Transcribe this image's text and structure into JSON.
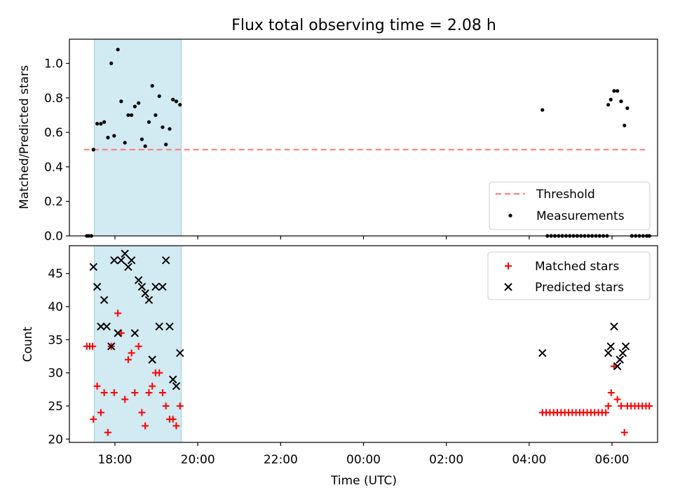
{
  "figure": {
    "title": "Flux total observing time = 2.08 h",
    "xlabel": "Time (UTC)"
  },
  "colors": {
    "shade": "#add8e6",
    "threshold": "#ff7777",
    "matched": "#ff0000",
    "predicted": "#000000",
    "measurement": "#000000"
  },
  "chart_data": [
    {
      "type": "scatter",
      "panel": "top",
      "ylabel": "Matched/Predicted stars",
      "x_axis": {
        "unit": "hours since 17:00 UTC (display as clock time)",
        "xlim": [
          16.9,
          31.1
        ],
        "ticks": [
          {
            "x": 18,
            "label": "18:00"
          },
          {
            "x": 20,
            "label": "20:00"
          },
          {
            "x": 22,
            "label": "22:00"
          },
          {
            "x": 24,
            "label": "00:00"
          },
          {
            "x": 26,
            "label": "02:00"
          },
          {
            "x": 28,
            "label": "04:00"
          },
          {
            "x": 30,
            "label": "06:00"
          }
        ]
      },
      "ylim": [
        0,
        1.14
      ],
      "yticks": [
        "0.0",
        "0.2",
        "0.4",
        "0.6",
        "0.8",
        "1.0"
      ],
      "shaded_region": [
        17.5,
        19.6
      ],
      "threshold": {
        "name": "Threshold",
        "value": 0.5,
        "x_range": [
          17.25,
          30.8
        ]
      },
      "series": [
        {
          "name": "Measurements",
          "marker": "dot",
          "points": [
            [
              17.32,
              0.0
            ],
            [
              17.37,
              0.0
            ],
            [
              17.43,
              0.0
            ],
            [
              17.48,
              0.5
            ],
            [
              17.57,
              0.65
            ],
            [
              17.66,
              0.65
            ],
            [
              17.74,
              0.66
            ],
            [
              17.83,
              0.57
            ],
            [
              17.91,
              1.0
            ],
            [
              17.98,
              0.58
            ],
            [
              18.07,
              1.08
            ],
            [
              18.15,
              0.78
            ],
            [
              18.24,
              0.54
            ],
            [
              18.32,
              0.7
            ],
            [
              18.4,
              0.7
            ],
            [
              18.48,
              0.75
            ],
            [
              18.57,
              0.77
            ],
            [
              18.65,
              0.56
            ],
            [
              18.73,
              0.52
            ],
            [
              18.82,
              0.66
            ],
            [
              18.9,
              0.87
            ],
            [
              18.98,
              0.7
            ],
            [
              19.07,
              0.81
            ],
            [
              19.15,
              0.63
            ],
            [
              19.23,
              0.53
            ],
            [
              19.32,
              0.62
            ],
            [
              19.4,
              0.79
            ],
            [
              19.48,
              0.78
            ],
            [
              19.57,
              0.76
            ],
            [
              28.32,
              0.73
            ],
            [
              28.44,
              0.0
            ],
            [
              28.53,
              0.0
            ],
            [
              28.62,
              0.0
            ],
            [
              28.71,
              0.0
            ],
            [
              28.8,
              0.0
            ],
            [
              28.89,
              0.0
            ],
            [
              28.98,
              0.0
            ],
            [
              29.07,
              0.0
            ],
            [
              29.16,
              0.0
            ],
            [
              29.25,
              0.0
            ],
            [
              29.34,
              0.0
            ],
            [
              29.43,
              0.0
            ],
            [
              29.52,
              0.0
            ],
            [
              29.61,
              0.0
            ],
            [
              29.7,
              0.0
            ],
            [
              29.79,
              0.0
            ],
            [
              29.88,
              0.0
            ],
            [
              29.91,
              0.76
            ],
            [
              29.97,
              0.79
            ],
            [
              30.05,
              0.84
            ],
            [
              30.13,
              0.84
            ],
            [
              30.22,
              0.78
            ],
            [
              30.3,
              0.64
            ],
            [
              30.37,
              0.74
            ],
            [
              30.48,
              0.0
            ],
            [
              30.57,
              0.0
            ],
            [
              30.66,
              0.0
            ],
            [
              30.75,
              0.0
            ],
            [
              30.84,
              0.0
            ],
            [
              30.9,
              0.0
            ]
          ]
        }
      ],
      "legend": {
        "placement": "lower right",
        "entries": [
          "Threshold",
          "Measurements"
        ]
      }
    },
    {
      "type": "scatter",
      "panel": "bottom",
      "ylabel": "Count",
      "x_axis": {
        "shared": true
      },
      "ylim": [
        19.5,
        49.2
      ],
      "yticks": [
        "20",
        "25",
        "30",
        "35",
        "40",
        "45"
      ],
      "shaded_region": [
        17.5,
        19.6
      ],
      "series": [
        {
          "name": "Matched stars",
          "marker": "plus",
          "points": [
            [
              17.32,
              34
            ],
            [
              17.39,
              34
            ],
            [
              17.46,
              34
            ],
            [
              17.48,
              23
            ],
            [
              17.57,
              28
            ],
            [
              17.66,
              24
            ],
            [
              17.74,
              27
            ],
            [
              17.83,
              21
            ],
            [
              17.91,
              34
            ],
            [
              17.98,
              27
            ],
            [
              18.07,
              39
            ],
            [
              18.15,
              36
            ],
            [
              18.24,
              26
            ],
            [
              18.32,
              32
            ],
            [
              18.4,
              33
            ],
            [
              18.48,
              27
            ],
            [
              18.57,
              34
            ],
            [
              18.65,
              24
            ],
            [
              18.73,
              22
            ],
            [
              18.82,
              27
            ],
            [
              18.9,
              28
            ],
            [
              18.98,
              30
            ],
            [
              19.07,
              30
            ],
            [
              19.15,
              27
            ],
            [
              19.23,
              25
            ],
            [
              19.32,
              23
            ],
            [
              19.4,
              23
            ],
            [
              19.48,
              22
            ],
            [
              19.57,
              25
            ],
            [
              28.32,
              24
            ],
            [
              28.41,
              24
            ],
            [
              28.5,
              24
            ],
            [
              28.59,
              24
            ],
            [
              28.68,
              24
            ],
            [
              28.77,
              24
            ],
            [
              28.86,
              24
            ],
            [
              28.95,
              24
            ],
            [
              29.04,
              24
            ],
            [
              29.13,
              24
            ],
            [
              29.22,
              24
            ],
            [
              29.31,
              24
            ],
            [
              29.4,
              24
            ],
            [
              29.49,
              24
            ],
            [
              29.58,
              24
            ],
            [
              29.67,
              24
            ],
            [
              29.76,
              24
            ],
            [
              29.85,
              24
            ],
            [
              29.91,
              25
            ],
            [
              29.98,
              27
            ],
            [
              30.05,
              31
            ],
            [
              30.13,
              26
            ],
            [
              30.22,
              25
            ],
            [
              30.3,
              21
            ],
            [
              30.37,
              25
            ],
            [
              30.46,
              25
            ],
            [
              30.55,
              25
            ],
            [
              30.64,
              25
            ],
            [
              30.73,
              25
            ],
            [
              30.82,
              25
            ],
            [
              30.9,
              25
            ]
          ]
        },
        {
          "name": "Predicted stars",
          "marker": "x",
          "points": [
            [
              17.48,
              46
            ],
            [
              17.57,
              43
            ],
            [
              17.66,
              37
            ],
            [
              17.74,
              41
            ],
            [
              17.8,
              37
            ],
            [
              17.91,
              34
            ],
            [
              17.98,
              47
            ],
            [
              18.07,
              36
            ],
            [
              18.15,
              47
            ],
            [
              18.24,
              48
            ],
            [
              18.32,
              46
            ],
            [
              18.4,
              47
            ],
            [
              18.48,
              36
            ],
            [
              18.57,
              44
            ],
            [
              18.65,
              43
            ],
            [
              18.73,
              42
            ],
            [
              18.82,
              41
            ],
            [
              18.9,
              32
            ],
            [
              18.98,
              43
            ],
            [
              19.07,
              37
            ],
            [
              19.15,
              43
            ],
            [
              19.23,
              47
            ],
            [
              19.32,
              37
            ],
            [
              19.4,
              29
            ],
            [
              19.48,
              28
            ],
            [
              19.57,
              33
            ],
            [
              28.32,
              33
            ],
            [
              29.91,
              33
            ],
            [
              29.97,
              34
            ],
            [
              30.05,
              37
            ],
            [
              30.13,
              31
            ],
            [
              30.19,
              32
            ],
            [
              30.26,
              33
            ],
            [
              30.33,
              34
            ]
          ]
        }
      ],
      "legend": {
        "placement": "upper right",
        "entries": [
          "Matched stars",
          "Predicted stars"
        ]
      }
    }
  ]
}
